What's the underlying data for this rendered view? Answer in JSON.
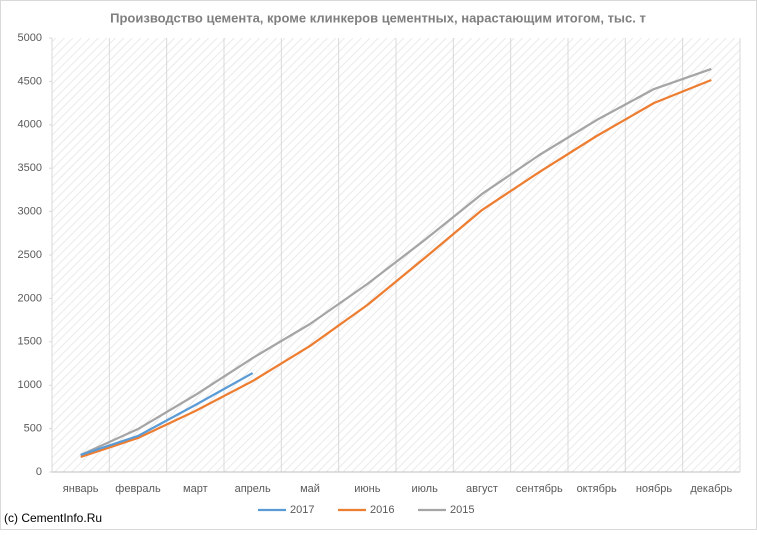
{
  "chart_data": {
    "type": "line",
    "title": "Производство цемента, кроме клинкеров цементных, нарастающим итогом, тыс. т",
    "categories": [
      "январь",
      "февраль",
      "март",
      "апрель",
      "май",
      "июнь",
      "июль",
      "август",
      "сентябрь",
      "октябрь",
      "ноябрь",
      "декабрь"
    ],
    "series": [
      {
        "name": "2017",
        "color": "#5b9bd5",
        "values": [
          196,
          415,
          772,
          1140,
          null,
          null,
          null,
          null,
          null,
          null,
          null,
          null
        ]
      },
      {
        "name": "2016",
        "color": "#ed7d31",
        "values": [
          173,
          392,
          703,
          1048,
          1452,
          1924,
          2465,
          3018,
          3456,
          3871,
          4251,
          4516
        ]
      },
      {
        "name": "2015",
        "color": "#a5a5a5",
        "values": [
          196,
          495,
          887,
          1313,
          1705,
          2166,
          2673,
          3203,
          3652,
          4055,
          4412,
          4643
        ]
      }
    ],
    "ylim": [
      0,
      5000
    ],
    "yticks": [
      0,
      500,
      1000,
      1500,
      2000,
      2500,
      3000,
      3500,
      4000,
      4500,
      5000
    ],
    "legend": "bottom",
    "footer": "(c) CementInfo.Ru"
  }
}
